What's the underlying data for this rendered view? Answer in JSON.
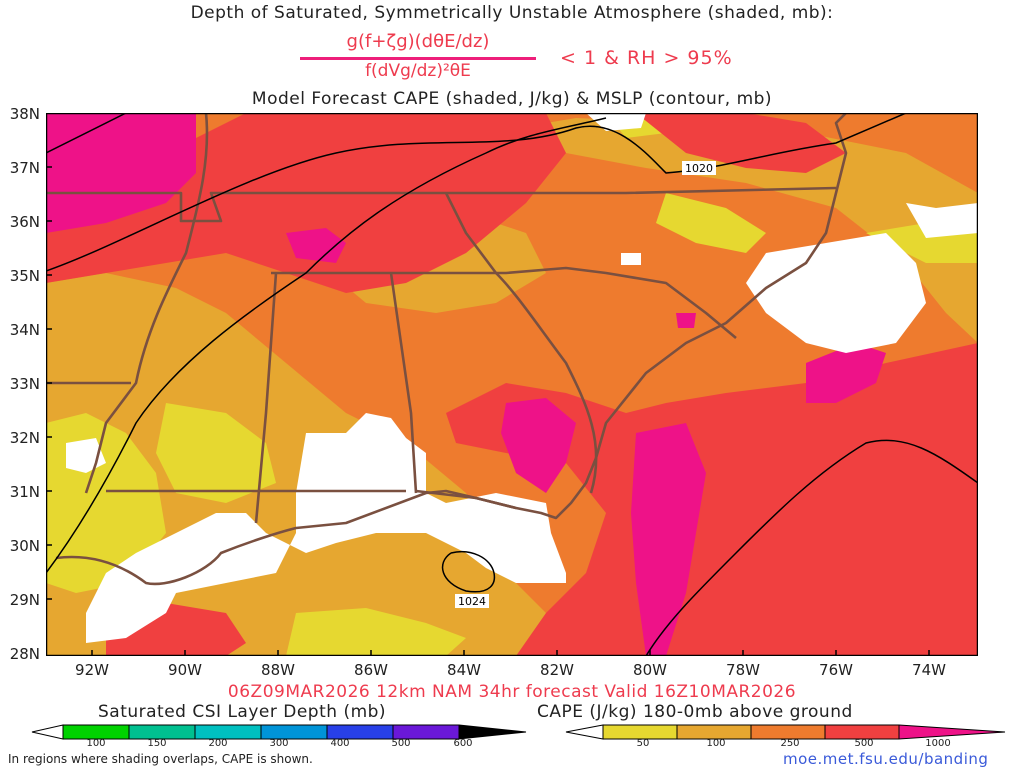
{
  "title": {
    "line1": "Depth of Saturated, Symmetrically Unstable Atmosphere (shaded, mb):",
    "numerator": "g(f+ζg)(dθE/dz)",
    "denominator": "f(dVg/dz)²θE",
    "condition": "< 1 & RH > 95%",
    "line3": "Model Forecast CAPE (shaded, J/kg) & MSLP (contour, mb)"
  },
  "map": {
    "lat_labels": [
      "38N",
      "37N",
      "36N",
      "35N",
      "34N",
      "33N",
      "32N",
      "31N",
      "30N",
      "29N",
      "28N"
    ],
    "lon_labels": [
      "92W",
      "90W",
      "88W",
      "86W",
      "84W",
      "82W",
      "80W",
      "78W",
      "76W",
      "74W"
    ],
    "isobar_labels": [
      "1020",
      "1024"
    ],
    "colors": {
      "cape_50": "#e6d830",
      "cape_100": "#e6a730",
      "cape_250": "#ee7b2e",
      "cape_500": "#f04040",
      "cape_1000": "#ee1288",
      "land_border": "#7a5040",
      "isobar": "#000000"
    }
  },
  "valid_line": "06Z09MAR2026 12km NAM 34hr forecast Valid 16Z10MAR2026",
  "legend": {
    "csi_label": "Saturated CSI Layer Depth (mb)",
    "csi_ticks": [
      "100",
      "150",
      "200",
      "300",
      "400",
      "500",
      "600"
    ],
    "csi_colors": [
      "#00d200",
      "#00c090",
      "#00c0c0",
      "#0094d8",
      "#2840e8",
      "#6a18d8"
    ],
    "cape_label": "CAPE (J/kg) 180-0mb above ground",
    "cape_ticks": [
      "50",
      "100",
      "250",
      "500",
      "1000"
    ],
    "cape_colors": [
      "#e6d830",
      "#e6a730",
      "#ee7b2e",
      "#f04040"
    ]
  },
  "footer": {
    "note": "In regions where shading overlaps, CAPE is shown.",
    "url": "moe.met.fsu.edu/banding"
  }
}
